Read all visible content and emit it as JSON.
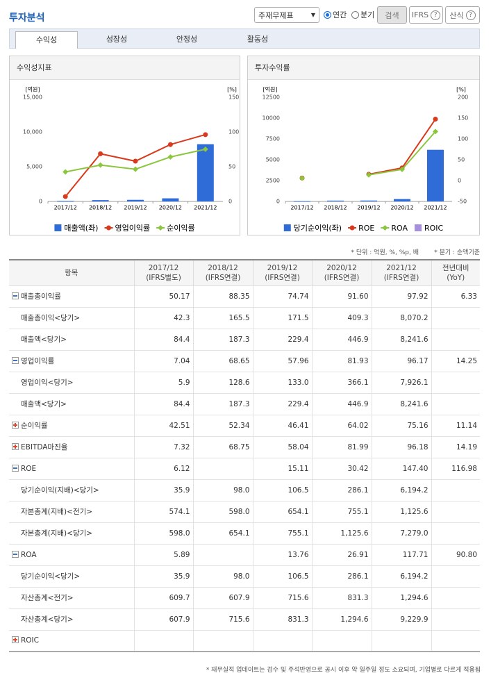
{
  "header": {
    "title": "투자분석",
    "statement": "주재무제표",
    "period_options": [
      "연간",
      "분기"
    ],
    "search": "검색",
    "ifrs": "IFRS",
    "formula": "산식"
  },
  "tabs": [
    "수익성",
    "성장성",
    "안정성",
    "활동성"
  ],
  "panels": [
    "수익성지표",
    "투자수익률"
  ],
  "chart_data": [
    {
      "type": "combo",
      "categories": [
        "2017/12",
        "2018/12",
        "2019/12",
        "2020/12",
        "2021/12"
      ],
      "y_label": "[억원]",
      "y2_label": "[%]",
      "ylim": [
        0,
        15000
      ],
      "yticks": [
        0,
        {
          "value": 5000,
          "label": "5,000"
        },
        {
          "value": 10000,
          "label": "10,000"
        },
        {
          "value": 15000,
          "label": "15,000"
        }
      ],
      "y2lim": [
        0,
        150
      ],
      "y2ticks": [
        0,
        50,
        100,
        150
      ],
      "series": [
        {
          "name": "매출액(좌)",
          "type": "bar",
          "color": "#2f6cd8",
          "values": [
            84.4,
            187.3,
            229.4,
            446.9,
            8241.6
          ]
        },
        {
          "name": "영업이익률",
          "type": "line",
          "marker": "circle",
          "axis": "y2",
          "color": "#d9391c",
          "values": [
            7.04,
            68.65,
            57.96,
            81.93,
            96.17
          ]
        },
        {
          "name": "순이익률",
          "type": "line",
          "marker": "diamond",
          "axis": "y2",
          "color": "#8cc63f",
          "values": [
            42.51,
            52.34,
            46.41,
            64.02,
            75.16
          ]
        }
      ]
    },
    {
      "type": "combo",
      "categories": [
        "2017/12",
        "2018/12",
        "2019/12",
        "2020/12",
        "2021/12"
      ],
      "y_label": "[억원]",
      "y2_label": "[%]",
      "ylim": [
        0,
        12500
      ],
      "yticks": [
        0,
        2500,
        5000,
        7500,
        10000,
        12500
      ],
      "y2lim": [
        -50,
        200
      ],
      "y2ticks": [
        -50,
        0,
        50,
        100,
        150,
        200
      ],
      "series": [
        {
          "name": "당기순이익(좌)",
          "type": "bar",
          "color": "#2f6cd8",
          "values": [
            35.9,
            98.0,
            106.5,
            286.1,
            6194.2
          ]
        },
        {
          "name": "ROE",
          "type": "line",
          "marker": "circle",
          "axis": "y2",
          "color": "#d9391c",
          "values": [
            6.12,
            null,
            15.11,
            30.42,
            147.4
          ]
        },
        {
          "name": "ROA",
          "type": "line",
          "marker": "diamond",
          "axis": "y2",
          "color": "#8cc63f",
          "values": [
            5.89,
            null,
            13.76,
            26.91,
            117.71
          ]
        },
        {
          "name": "ROIC",
          "type": "bar",
          "color": "#a58fde",
          "values": [
            null,
            null,
            null,
            null,
            null
          ]
        }
      ]
    }
  ],
  "notes": [
    "* 단위 : 억원, %, %p, 배",
    "* 분기 : 순액기준"
  ],
  "table": {
    "header": [
      [
        "항목"
      ],
      [
        "2017/12",
        "(IFRS별도)"
      ],
      [
        "2018/12",
        "(IFRS연결)"
      ],
      [
        "2019/12",
        "(IFRS연결)"
      ],
      [
        "2020/12",
        "(IFRS연결)"
      ],
      [
        "2021/12",
        "(IFRS연결)"
      ],
      [
        "전년대비",
        "(YoY)"
      ]
    ],
    "rows": [
      {
        "label": "매출총이익률",
        "icon": "minus",
        "cells": [
          "50.17",
          "88.35",
          "74.74",
          "91.60",
          "97.92",
          "6.33"
        ]
      },
      {
        "label": "매출총이익<당기>",
        "cells": [
          "42.3",
          "165.5",
          "171.5",
          "409.3",
          "8,070.2",
          null
        ]
      },
      {
        "label": "매출액<당기>",
        "cells": [
          "84.4",
          "187.3",
          "229.4",
          "446.9",
          "8,241.6",
          null
        ]
      },
      {
        "label": "영업이익률",
        "icon": "minus",
        "cells": [
          "7.04",
          "68.65",
          "57.96",
          "81.93",
          "96.17",
          "14.25"
        ]
      },
      {
        "label": "영업이익<당기>",
        "cells": [
          "5.9",
          "128.6",
          "133.0",
          "366.1",
          "7,926.1",
          null
        ]
      },
      {
        "label": "매출액<당기>",
        "cells": [
          "84.4",
          "187.3",
          "229.4",
          "446.9",
          "8,241.6",
          null
        ]
      },
      {
        "label": "순이익률",
        "icon": "plus",
        "cells": [
          "42.51",
          "52.34",
          "46.41",
          "64.02",
          "75.16",
          "11.14"
        ]
      },
      {
        "label": "EBITDA마진율",
        "icon": "plus",
        "cells": [
          "7.32",
          "68.75",
          "58.04",
          "81.99",
          "96.18",
          "14.19"
        ]
      },
      {
        "label": "ROE",
        "icon": "minus",
        "cells": [
          "6.12",
          null,
          "15.11",
          "30.42",
          "147.40",
          "116.98"
        ]
      },
      {
        "label": "당기순이익(지배)<당기>",
        "cells": [
          "35.9",
          "98.0",
          "106.5",
          "286.1",
          "6,194.2",
          null
        ]
      },
      {
        "label": "자본총계(지배)<전기>",
        "cells": [
          "574.1",
          "598.0",
          "654.1",
          "755.1",
          "1,125.6",
          null
        ]
      },
      {
        "label": "자본총계(지배)<당기>",
        "cells": [
          "598.0",
          "654.1",
          "755.1",
          "1,125.6",
          "7,279.0",
          null
        ]
      },
      {
        "label": "ROA",
        "icon": "minus",
        "cells": [
          "5.89",
          null,
          "13.76",
          "26.91",
          "117.71",
          "90.80"
        ]
      },
      {
        "label": "당기순이익<당기>",
        "cells": [
          "35.9",
          "98.0",
          "106.5",
          "286.1",
          "6,194.2",
          null
        ]
      },
      {
        "label": "자산총계<전기>",
        "cells": [
          "609.7",
          "607.9",
          "715.6",
          "831.3",
          "1,294.6",
          null
        ]
      },
      {
        "label": "자산총계<당기>",
        "cells": [
          "607.9",
          "715.6",
          "831.3",
          "1,294.6",
          "9,229.9",
          null
        ]
      },
      {
        "label": "ROIC",
        "icon": "plus",
        "cells": [
          null,
          null,
          null,
          null,
          null,
          null
        ]
      }
    ]
  },
  "footer": "* 재무실적 업데이트는 검수 및 주석반영으로 공시 이후 약 일주일 정도 소요되며, 기업별로 다르게 적용됨"
}
